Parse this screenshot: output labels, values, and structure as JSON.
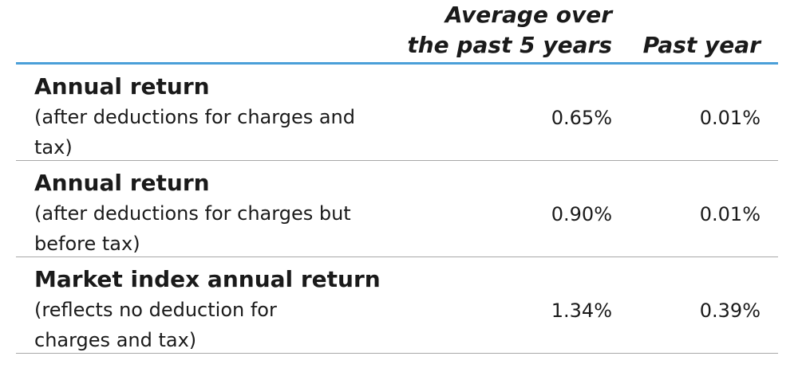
{
  "header": {
    "avg_col_line1": "Average over",
    "avg_col_line2": "the past 5 years",
    "past_col": "Past year"
  },
  "rows": [
    {
      "title": "Annual return",
      "subtitle_line1": "(after deductions for charges and",
      "subtitle_line2": "tax)",
      "avg": "0.65%",
      "past": "0.01%"
    },
    {
      "title": "Annual return",
      "subtitle_line1": "(after deductions for charges but",
      "subtitle_line2": "before tax)",
      "avg": "0.90%",
      "past": "0.01%"
    },
    {
      "title": "Market index annual return",
      "subtitle_line1": "(reflects no deduction for",
      "subtitle_line2": "charges and tax)",
      "avg": "1.34%",
      "past": "0.39%"
    }
  ]
}
